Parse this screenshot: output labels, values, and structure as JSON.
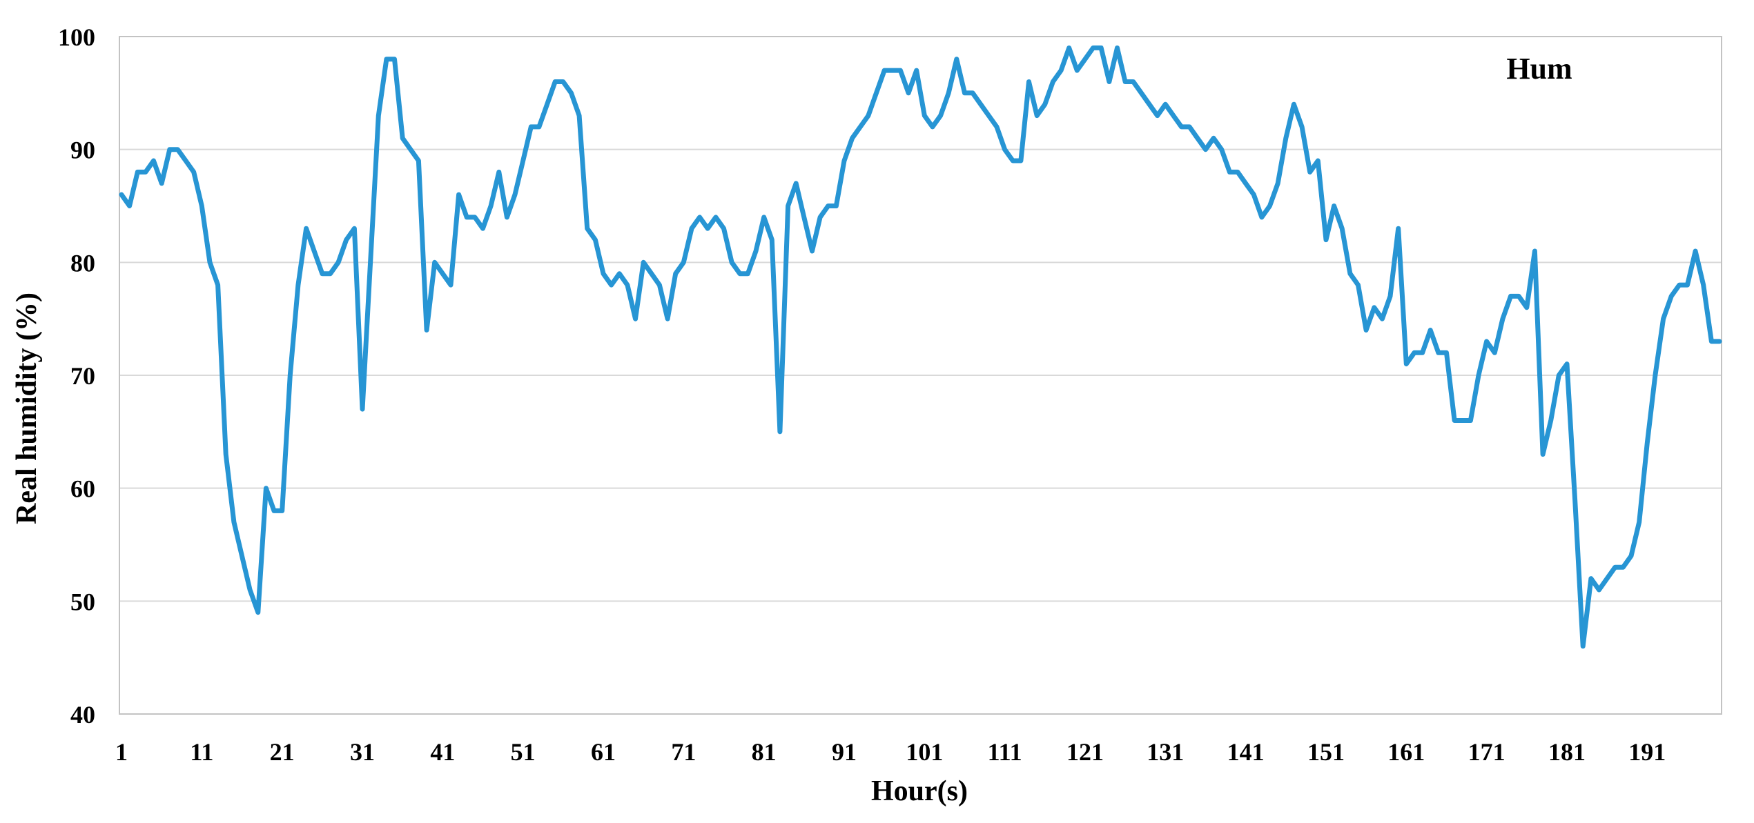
{
  "page": {
    "background": "#ffffff"
  },
  "chart_data": {
    "type": "line",
    "title": "",
    "legend_label": "Hum",
    "legend_position": "top-right-inside",
    "xlabel": "Hour(s)",
    "ylabel": "Real humidity (%)",
    "grid": "horizontal-only",
    "ylim": [
      40,
      100
    ],
    "y_ticks": [
      100,
      90,
      80,
      70,
      60,
      50,
      40
    ],
    "x_tick_labels": [
      "1",
      "11",
      "21",
      "31",
      "41",
      "51",
      "61",
      "71",
      "81",
      "91",
      "101",
      "111",
      "121",
      "131",
      "141",
      "151",
      "161",
      "171",
      "181",
      "191"
    ],
    "x_start": 1,
    "x_step": 1,
    "n_points": 200,
    "line_color": "#2795D4",
    "line_width": 7,
    "grid_color": "#D9D9D9",
    "border_color": "#C3C3C3",
    "text_color": "#000000",
    "series": [
      {
        "name": "Hum",
        "values": [
          86,
          85,
          88,
          88,
          89,
          87,
          90,
          90,
          89,
          88,
          85,
          80,
          78,
          63,
          57,
          54,
          51,
          49,
          60,
          58,
          58,
          70,
          78,
          83,
          81,
          79,
          79,
          80,
          82,
          83,
          67,
          80,
          93,
          98,
          98,
          91,
          90,
          89,
          74,
          80,
          79,
          78,
          86,
          84,
          84,
          83,
          85,
          88,
          84,
          86,
          89,
          92,
          92,
          94,
          96,
          96,
          95,
          93,
          83,
          82,
          79,
          78,
          79,
          78,
          75,
          80,
          79,
          78,
          75,
          79,
          80,
          83,
          84,
          83,
          84,
          83,
          80,
          79,
          79,
          81,
          84,
          82,
          65,
          85,
          87,
          84,
          81,
          84,
          85,
          85,
          89,
          91,
          92,
          93,
          95,
          97,
          97,
          97,
          95,
          97,
          93,
          92,
          93,
          95,
          98,
          95,
          95,
          94,
          93,
          92,
          90,
          89,
          89,
          96,
          93,
          94,
          96,
          97,
          99,
          97,
          98,
          99,
          99,
          96,
          99,
          96,
          96,
          95,
          94,
          93,
          94,
          93,
          92,
          92,
          91,
          90,
          91,
          90,
          88,
          88,
          87,
          86,
          84,
          85,
          87,
          91,
          94,
          92,
          88,
          89,
          82,
          85,
          83,
          79,
          78,
          74,
          76,
          75,
          77,
          83,
          71,
          72,
          72,
          74,
          72,
          72,
          66,
          66,
          66,
          70,
          73,
          72,
          75,
          77,
          77,
          76,
          81,
          63,
          66,
          70,
          71,
          59,
          46,
          52,
          51,
          52,
          53,
          53,
          54,
          57,
          64,
          70,
          75,
          77,
          78,
          78,
          81,
          78,
          73,
          73
        ]
      }
    ]
  }
}
